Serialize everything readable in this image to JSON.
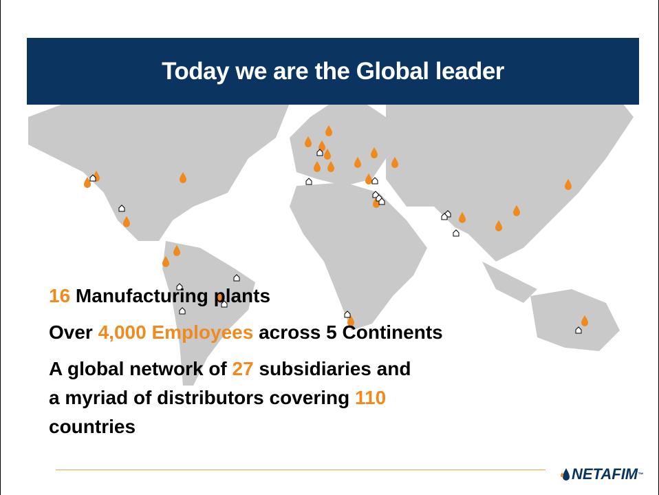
{
  "title": "Today we are the Global leader",
  "lines": [
    [
      "16",
      " Manufacturing plants"
    ],
    [
      "Over ",
      "4,000 Employees",
      " across 5 Continents"
    ],
    [
      "A global network of ",
      "27",
      " subsidiaries and"
    ],
    [
      "a myriad of distributors covering ",
      "110"
    ],
    [
      "countries"
    ]
  ],
  "logo": "NETAFIM",
  "logo_mark": "™"
}
